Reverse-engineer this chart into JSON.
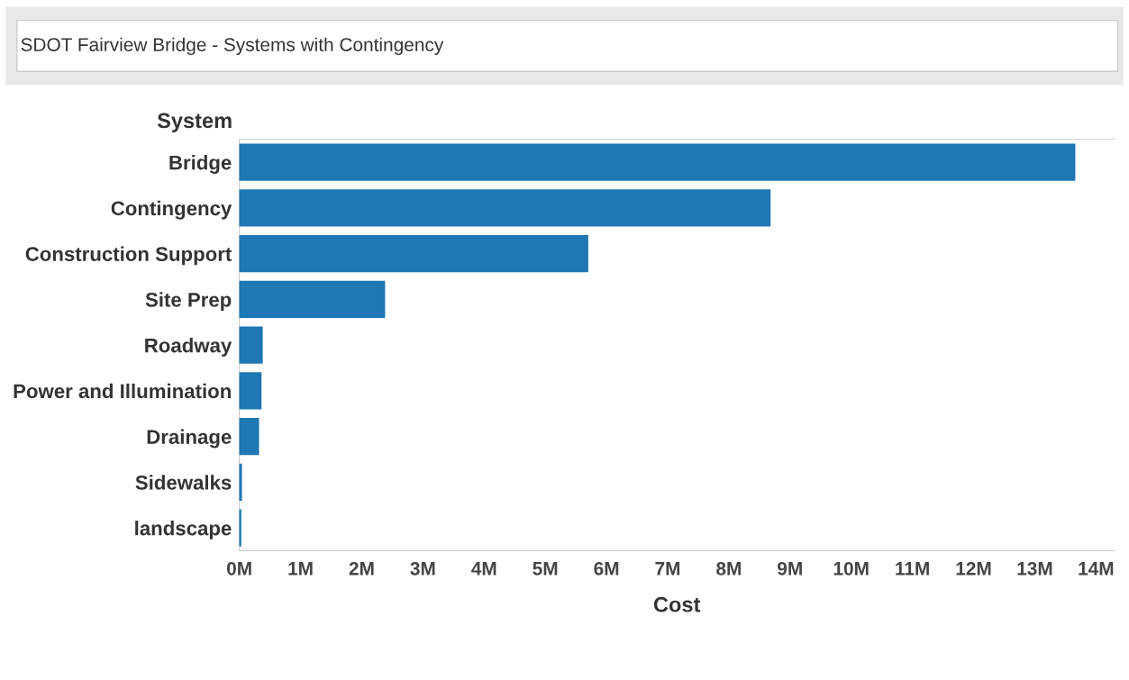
{
  "chart_data": {
    "type": "bar",
    "orientation": "horizontal",
    "title": "SDOT Fairview Bridge - Systems with Contingency",
    "ylabel": "System",
    "xlabel": "Cost",
    "categories": [
      "Bridge",
      "Contingency",
      "Construction Support",
      "Site Prep",
      "Roadway",
      "Power and Illumination",
      "Drainage",
      "Sidewalks",
      "landscape"
    ],
    "values": [
      13.65,
      8.67,
      5.69,
      2.37,
      0.37,
      0.35,
      0.31,
      0.03,
      0.02
    ],
    "color": "#1f77b4",
    "xlim": [
      0,
      14.3
    ],
    "xticks": [
      {
        "value": 0,
        "label": "0M"
      },
      {
        "value": 1,
        "label": "1M"
      },
      {
        "value": 2,
        "label": "2M"
      },
      {
        "value": 3,
        "label": "3M"
      },
      {
        "value": 4,
        "label": "4M"
      },
      {
        "value": 5,
        "label": "5M"
      },
      {
        "value": 6,
        "label": "6M"
      },
      {
        "value": 7,
        "label": "7M"
      },
      {
        "value": 8,
        "label": "8M"
      },
      {
        "value": 9,
        "label": "9M"
      },
      {
        "value": 10,
        "label": "10M"
      },
      {
        "value": 11,
        "label": "11M"
      },
      {
        "value": 12,
        "label": "12M"
      },
      {
        "value": 13,
        "label": "13M"
      },
      {
        "value": 14,
        "label": "14M"
      }
    ],
    "grid": false,
    "legend": false
  }
}
